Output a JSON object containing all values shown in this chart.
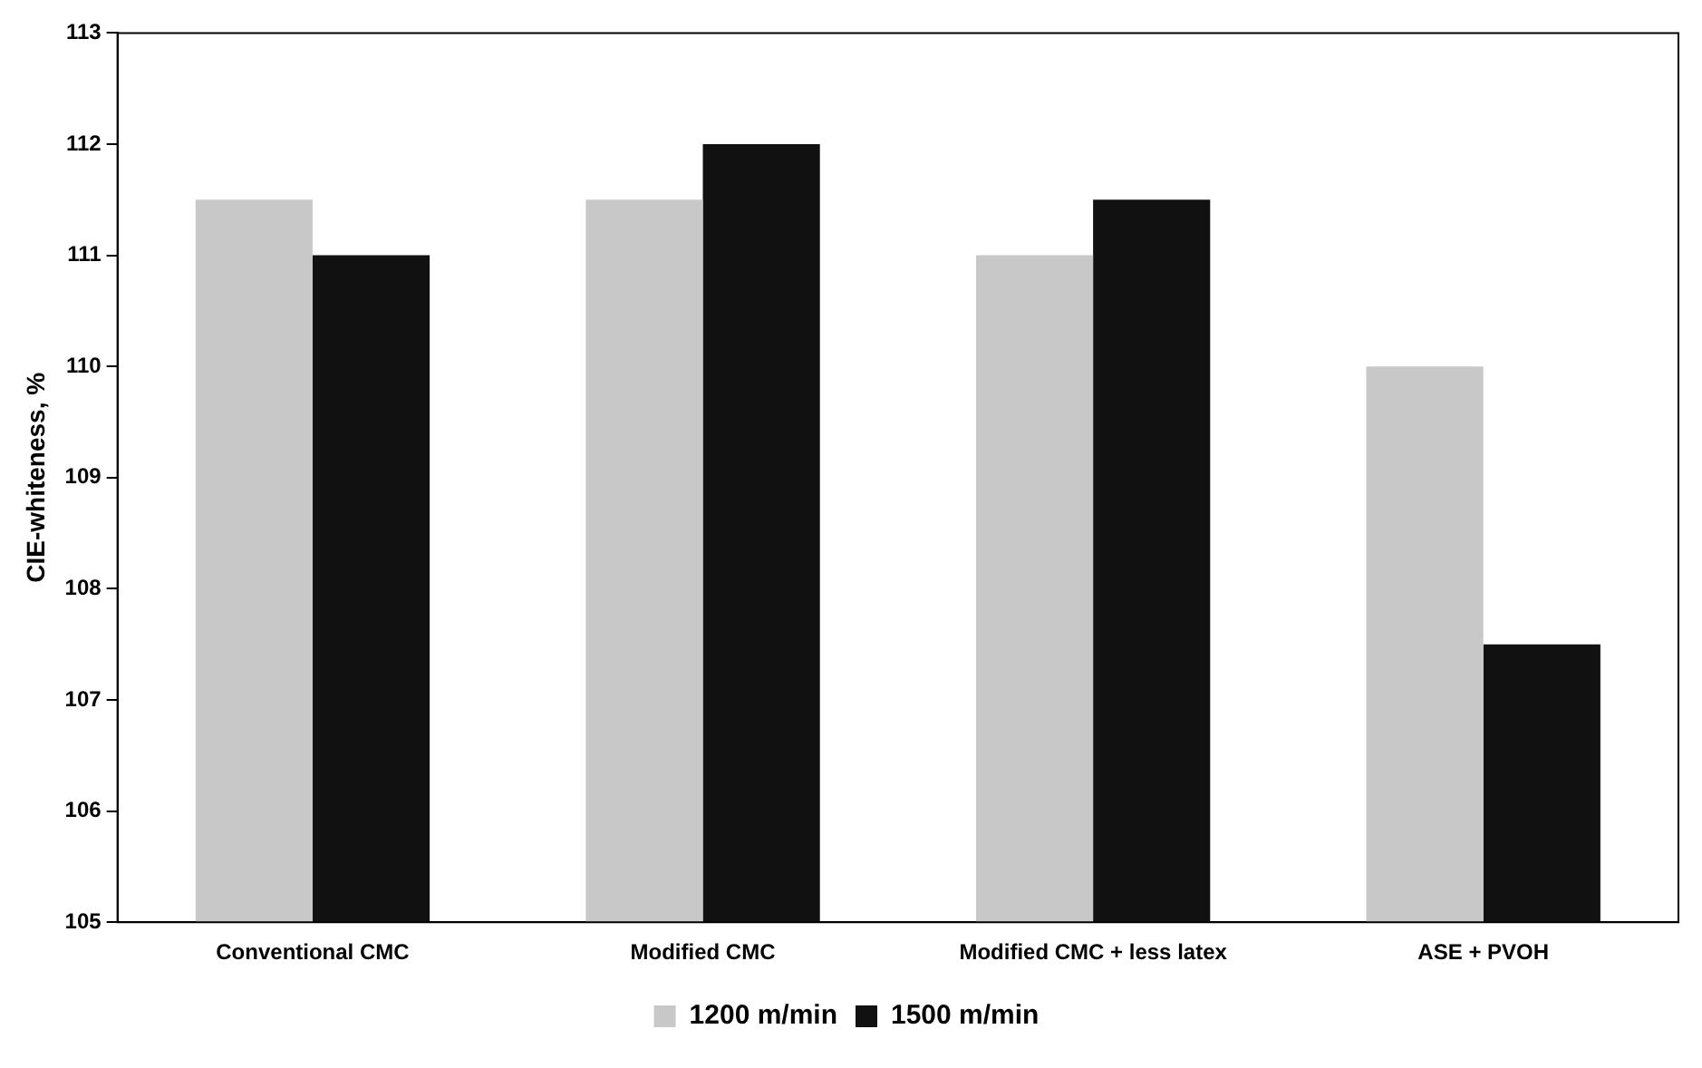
{
  "chart_data": {
    "type": "bar",
    "ylabel": "CIE-whiteness, %",
    "categories": [
      "Conventional CMC",
      "Modified CMC",
      "Modified CMC + less latex",
      "ASE + PVOH"
    ],
    "series": [
      {
        "name": "1200 m/min",
        "color": "#c8c8c8",
        "values": [
          111.5,
          111.5,
          111,
          110
        ]
      },
      {
        "name": "1500 m/min",
        "color": "#111111",
        "values": [
          111,
          112,
          111.5,
          107.5
        ]
      }
    ],
    "ylim": [
      105,
      113
    ],
    "yticks": [
      105,
      106,
      107,
      108,
      109,
      110,
      111,
      112,
      113
    ],
    "grid": false,
    "legend": "bottom"
  }
}
